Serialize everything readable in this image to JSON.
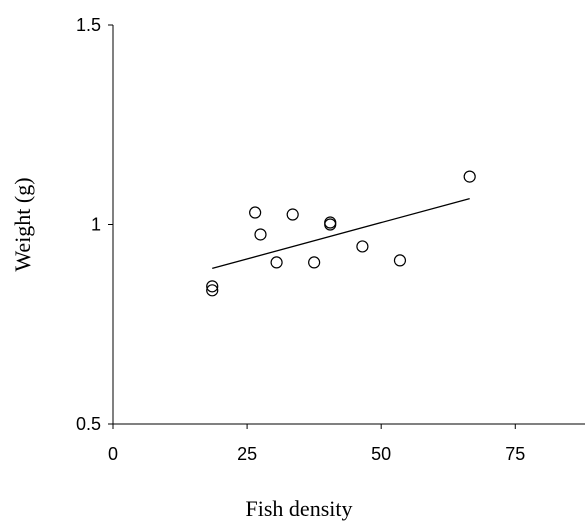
{
  "chart_data": {
    "type": "scatter",
    "title": "",
    "xlabel": "Fish density",
    "ylabel": "Weight (g)",
    "xlim": [
      0,
      88
    ],
    "ylim": [
      0.5,
      1.5
    ],
    "x_ticks": [
      0,
      25,
      50,
      75
    ],
    "x_tick_labels": [
      "0",
      "25",
      "50",
      "75"
    ],
    "y_ticks": [
      0.5,
      1,
      1.5
    ],
    "y_tick_labels": [
      "0.5",
      "1",
      "1.5"
    ],
    "grid": false,
    "series": [
      {
        "points": [
          {
            "x": 18.5,
            "y": 0.845
          },
          {
            "x": 18.5,
            "y": 0.835
          },
          {
            "x": 26.5,
            "y": 1.03
          },
          {
            "x": 27.5,
            "y": 0.975
          },
          {
            "x": 30.5,
            "y": 0.905
          },
          {
            "x": 33.5,
            "y": 1.025
          },
          {
            "x": 37.5,
            "y": 0.905
          },
          {
            "x": 40.5,
            "y": 1.005
          },
          {
            "x": 40.5,
            "y": 1.0
          },
          {
            "x": 46.5,
            "y": 0.945
          },
          {
            "x": 53.5,
            "y": 0.91
          },
          {
            "x": 66.5,
            "y": 1.12
          }
        ]
      }
    ],
    "trend_line": {
      "x": [
        18.5,
        66.5
      ],
      "y": [
        0.89,
        1.065
      ]
    }
  }
}
